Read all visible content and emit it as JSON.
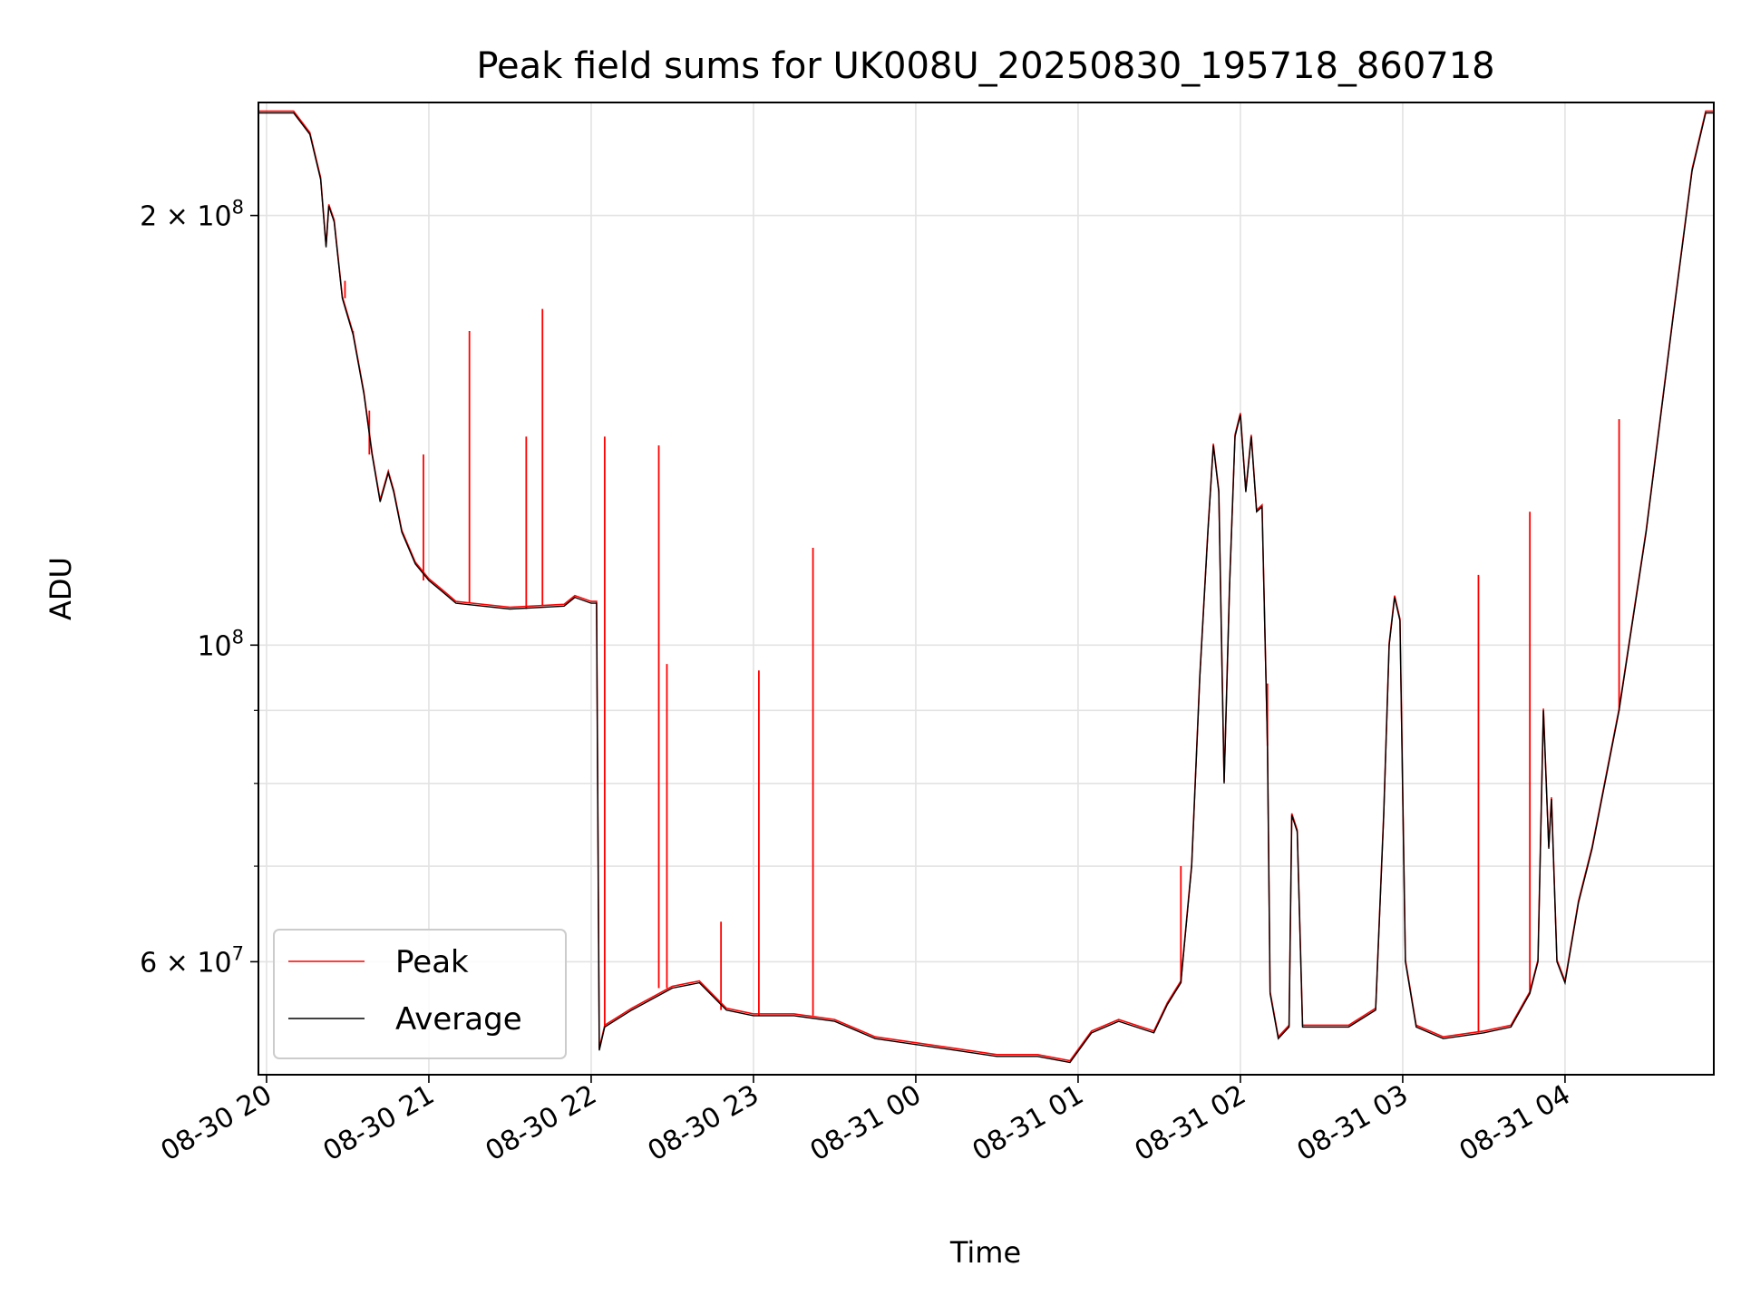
{
  "chart_data": {
    "type": "line",
    "title": "Peak field sums for UK008U_20250830_195718_860718",
    "xlabel": "Time",
    "ylabel": "ADU",
    "yscale": "log",
    "ylim": [
      50000000,
      240000000
    ],
    "xlim": [
      "2025-08-30 19:57",
      "2025-08-31 04:55"
    ],
    "grid": true,
    "legend_placement": "lower-left",
    "x_ticks": [
      {
        "value": "2025-08-30 20:00",
        "label": "08-30 20"
      },
      {
        "value": "2025-08-30 21:00",
        "label": "08-30 21"
      },
      {
        "value": "2025-08-30 22:00",
        "label": "08-30 22"
      },
      {
        "value": "2025-08-30 23:00",
        "label": "08-30 23"
      },
      {
        "value": "2025-08-31 00:00",
        "label": "08-31 00"
      },
      {
        "value": "2025-08-31 01:00",
        "label": "08-31 01"
      },
      {
        "value": "2025-08-31 02:00",
        "label": "08-31 02"
      },
      {
        "value": "2025-08-31 03:00",
        "label": "08-31 03"
      },
      {
        "value": "2025-08-31 04:00",
        "label": "08-31 04"
      }
    ],
    "y_major_ticks": [
      {
        "value": 60000000,
        "label": "6 × 10^7"
      },
      {
        "value": 100000000,
        "label": "10^8"
      },
      {
        "value": 200000000,
        "label": "2 × 10^8"
      }
    ],
    "y_minor_gridlines": [
      70000000,
      80000000,
      90000000
    ],
    "series": [
      {
        "name": "Average",
        "color": "#000000",
        "points": [
          [
            "2025-08-30 19:57",
            236000000
          ],
          [
            "2025-08-30 20:10",
            236000000
          ],
          [
            "2025-08-30 20:16",
            228000000
          ],
          [
            "2025-08-30 20:20",
            212000000
          ],
          [
            "2025-08-30 20:22",
            190000000
          ],
          [
            "2025-08-30 20:23",
            203000000
          ],
          [
            "2025-08-30 20:25",
            198000000
          ],
          [
            "2025-08-30 20:28",
            175000000
          ],
          [
            "2025-08-30 20:32",
            165000000
          ],
          [
            "2025-08-30 20:36",
            150000000
          ],
          [
            "2025-08-30 20:39",
            136000000
          ],
          [
            "2025-08-30 20:42",
            126000000
          ],
          [
            "2025-08-30 20:45",
            132000000
          ],
          [
            "2025-08-30 20:47",
            128000000
          ],
          [
            "2025-08-30 20:50",
            120000000
          ],
          [
            "2025-08-30 20:55",
            114000000
          ],
          [
            "2025-08-30 21:00",
            111000000
          ],
          [
            "2025-08-30 21:05",
            109000000
          ],
          [
            "2025-08-30 21:10",
            107000000
          ],
          [
            "2025-08-30 21:30",
            106000000
          ],
          [
            "2025-08-30 21:50",
            106500000
          ],
          [
            "2025-08-30 21:54",
            108000000
          ],
          [
            "2025-08-30 22:00",
            107000000
          ],
          [
            "2025-08-30 22:02",
            107000000
          ],
          [
            "2025-08-30 22:03",
            52000000
          ],
          [
            "2025-08-30 22:05",
            54000000
          ],
          [
            "2025-08-30 22:15",
            55500000
          ],
          [
            "2025-08-30 22:30",
            57500000
          ],
          [
            "2025-08-30 22:40",
            58000000
          ],
          [
            "2025-08-30 22:50",
            55500000
          ],
          [
            "2025-08-30 23:00",
            55000000
          ],
          [
            "2025-08-30 23:15",
            55000000
          ],
          [
            "2025-08-30 23:30",
            54500000
          ],
          [
            "2025-08-30 23:45",
            53000000
          ],
          [
            "2025-08-31 00:00",
            52500000
          ],
          [
            "2025-08-31 00:15",
            52000000
          ],
          [
            "2025-08-31 00:30",
            51500000
          ],
          [
            "2025-08-31 00:45",
            51500000
          ],
          [
            "2025-08-31 00:57",
            51000000
          ],
          [
            "2025-08-31 01:05",
            53500000
          ],
          [
            "2025-08-31 01:15",
            54500000
          ],
          [
            "2025-08-31 01:28",
            53500000
          ],
          [
            "2025-08-31 01:33",
            56000000
          ],
          [
            "2025-08-31 01:38",
            58000000
          ],
          [
            "2025-08-31 01:42",
            70000000
          ],
          [
            "2025-08-31 01:45",
            95000000
          ],
          [
            "2025-08-31 01:48",
            120000000
          ],
          [
            "2025-08-31 01:50",
            138000000
          ],
          [
            "2025-08-31 01:52",
            128000000
          ],
          [
            "2025-08-31 01:54",
            80000000
          ],
          [
            "2025-08-31 01:56",
            110000000
          ],
          [
            "2025-08-31 01:58",
            140000000
          ],
          [
            "2025-08-31 02:00",
            145000000
          ],
          [
            "2025-08-31 02:02",
            128000000
          ],
          [
            "2025-08-31 02:04",
            140000000
          ],
          [
            "2025-08-31 02:06",
            124000000
          ],
          [
            "2025-08-31 02:08",
            125000000
          ],
          [
            "2025-08-31 02:10",
            85000000
          ],
          [
            "2025-08-31 02:11",
            57000000
          ],
          [
            "2025-08-31 02:14",
            53000000
          ],
          [
            "2025-08-31 02:18",
            54000000
          ],
          [
            "2025-08-31 02:19",
            76000000
          ],
          [
            "2025-08-31 02:21",
            74000000
          ],
          [
            "2025-08-31 02:23",
            54000000
          ],
          [
            "2025-08-31 02:40",
            54000000
          ],
          [
            "2025-08-31 02:50",
            55500000
          ],
          [
            "2025-08-31 02:53",
            76000000
          ],
          [
            "2025-08-31 02:55",
            100000000
          ],
          [
            "2025-08-31 02:57",
            108000000
          ],
          [
            "2025-08-31 02:59",
            104000000
          ],
          [
            "2025-08-31 03:01",
            60000000
          ],
          [
            "2025-08-31 03:05",
            54000000
          ],
          [
            "2025-08-31 03:15",
            53000000
          ],
          [
            "2025-08-31 03:30",
            53500000
          ],
          [
            "2025-08-31 03:40",
            54000000
          ],
          [
            "2025-08-31 03:47",
            57000000
          ],
          [
            "2025-08-31 03:50",
            60000000
          ],
          [
            "2025-08-31 03:52",
            90000000
          ],
          [
            "2025-08-31 03:54",
            72000000
          ],
          [
            "2025-08-31 03:55",
            78000000
          ],
          [
            "2025-08-31 03:57",
            60000000
          ],
          [
            "2025-08-31 04:00",
            58000000
          ],
          [
            "2025-08-31 04:05",
            66000000
          ],
          [
            "2025-08-31 04:10",
            72000000
          ],
          [
            "2025-08-31 04:20",
            90000000
          ],
          [
            "2025-08-31 04:30",
            120000000
          ],
          [
            "2025-08-31 04:40",
            170000000
          ],
          [
            "2025-08-31 04:47",
            215000000
          ],
          [
            "2025-08-31 04:52",
            236000000
          ],
          [
            "2025-08-31 04:55",
            236000000
          ]
        ]
      },
      {
        "name": "Peak",
        "color": "#ff0000",
        "spikes": [
          [
            "2025-08-30 20:29",
            180000000
          ],
          [
            "2025-08-30 20:32",
            166000000
          ],
          [
            "2025-08-30 20:38",
            146000000
          ],
          [
            "2025-08-30 20:58",
            136000000
          ],
          [
            "2025-08-30 21:15",
            166000000
          ],
          [
            "2025-08-30 21:36",
            140000000
          ],
          [
            "2025-08-30 21:42",
            172000000
          ],
          [
            "2025-08-30 22:05",
            140000000
          ],
          [
            "2025-08-30 22:25",
            138000000
          ],
          [
            "2025-08-30 22:28",
            97000000
          ],
          [
            "2025-08-30 22:48",
            64000000
          ],
          [
            "2025-08-30 23:02",
            96000000
          ],
          [
            "2025-08-30 23:22",
            117000000
          ],
          [
            "2025-08-31 01:38",
            70000000
          ],
          [
            "2025-08-31 02:10",
            94000000
          ],
          [
            "2025-08-31 03:28",
            112000000
          ],
          [
            "2025-08-31 03:47",
            124000000
          ],
          [
            "2025-08-31 04:20",
            144000000
          ]
        ]
      }
    ]
  }
}
